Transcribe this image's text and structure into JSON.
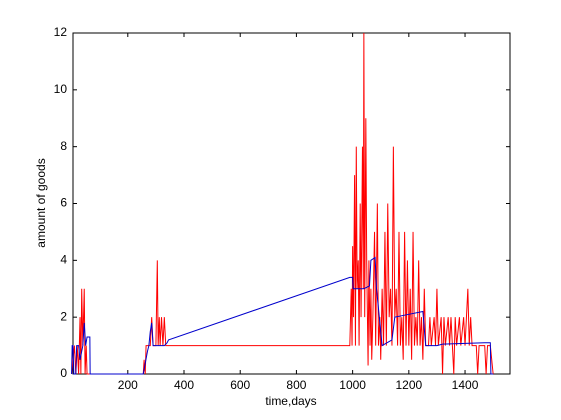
{
  "chart_data": {
    "type": "line",
    "xlabel": "time,days",
    "ylabel": "amount of goods",
    "xlim": [
      5,
      1560
    ],
    "ylim": [
      0,
      12
    ],
    "xticks": [
      200,
      400,
      600,
      800,
      1000,
      1200,
      1400
    ],
    "yticks": [
      0,
      2,
      4,
      6,
      8,
      10,
      12
    ],
    "series": [
      {
        "color": "#ff0000",
        "x": [
          0,
          10,
          15,
          20,
          25,
          30,
          33,
          36,
          40,
          45,
          48,
          52,
          55,
          255,
          258,
          262,
          265,
          280,
          285,
          290,
          300,
          305,
          308,
          312,
          315,
          320,
          325,
          330,
          335,
          340,
          990,
          995,
          998,
          1000,
          1003,
          1007,
          1010,
          1013,
          1016,
          1020,
          1023,
          1027,
          1030,
          1035,
          1038,
          1040,
          1043,
          1047,
          1050,
          1055,
          1058,
          1062,
          1065,
          1068,
          1072,
          1078,
          1082,
          1088,
          1092,
          1097,
          1100,
          1105,
          1110,
          1115,
          1120,
          1125,
          1130,
          1135,
          1140,
          1145,
          1150,
          1155,
          1160,
          1165,
          1170,
          1175,
          1180,
          1185,
          1190,
          1195,
          1200,
          1205,
          1210,
          1215,
          1220,
          1225,
          1230,
          1235,
          1240,
          1245,
          1250,
          1255,
          1260,
          1270,
          1275,
          1280,
          1290,
          1295,
          1300,
          1305,
          1315,
          1320,
          1325,
          1330,
          1340,
          1345,
          1350,
          1360,
          1365,
          1370,
          1380,
          1385,
          1395,
          1400,
          1410,
          1415,
          1420,
          1425,
          1440,
          1445,
          1450,
          1470,
          1475,
          1480,
          1490,
          1500
        ],
        "values": [
          0,
          1,
          0,
          1,
          0,
          2,
          0,
          3,
          1,
          3,
          0,
          1,
          0,
          0,
          0.5,
          0,
          1,
          1,
          2,
          1,
          1,
          4,
          1,
          2,
          1,
          2,
          1,
          2,
          1,
          1,
          1,
          3,
          1,
          4.5,
          2,
          7,
          1,
          8,
          3,
          4,
          1,
          6,
          2,
          8,
          3,
          12,
          2,
          9,
          4,
          0.3,
          4,
          1,
          3,
          0.5,
          2,
          5,
          1,
          6,
          1,
          2,
          0.5,
          3,
          1,
          5,
          1,
          6,
          2,
          3,
          1,
          8,
          2,
          3,
          1,
          5,
          1,
          2,
          0.5,
          5,
          1,
          4,
          1,
          3,
          0.5,
          5,
          1,
          2,
          1,
          4,
          1,
          2,
          0.5,
          3,
          1,
          1,
          2,
          1,
          2,
          1,
          3,
          1,
          2,
          0,
          2,
          1,
          2,
          1,
          2,
          0,
          2,
          1,
          2,
          1,
          2,
          1,
          3,
          1,
          2,
          1,
          1,
          0,
          1,
          1,
          0,
          1,
          1,
          0
        ]
      },
      {
        "color": "#0000cc",
        "x": [
          0,
          2,
          5,
          8,
          15,
          18,
          25,
          30,
          40,
          45,
          50,
          55,
          65,
          66,
          255,
          270,
          275,
          280,
          285,
          290,
          330,
          340,
          345,
          990,
          1000,
          1002,
          1040,
          1060,
          1065,
          1080,
          1085,
          1090,
          1100,
          1105,
          1140,
          1150,
          1200,
          1250,
          1260,
          1300,
          1320,
          1470,
          1490,
          1492,
          1500
        ],
        "values": [
          0,
          1,
          1,
          0,
          0,
          1,
          1,
          0.5,
          1,
          1.8,
          1,
          1.3,
          1.3,
          0,
          0,
          0.8,
          1,
          1.5,
          1.8,
          1,
          1,
          1.1,
          1.2,
          3.4,
          3.4,
          3,
          3,
          3.1,
          4,
          4.1,
          3,
          2.5,
          1.5,
          1,
          1.2,
          2,
          2.1,
          2.2,
          1,
          1,
          1.05,
          1.1,
          1.1,
          0,
          0
        ]
      }
    ]
  }
}
